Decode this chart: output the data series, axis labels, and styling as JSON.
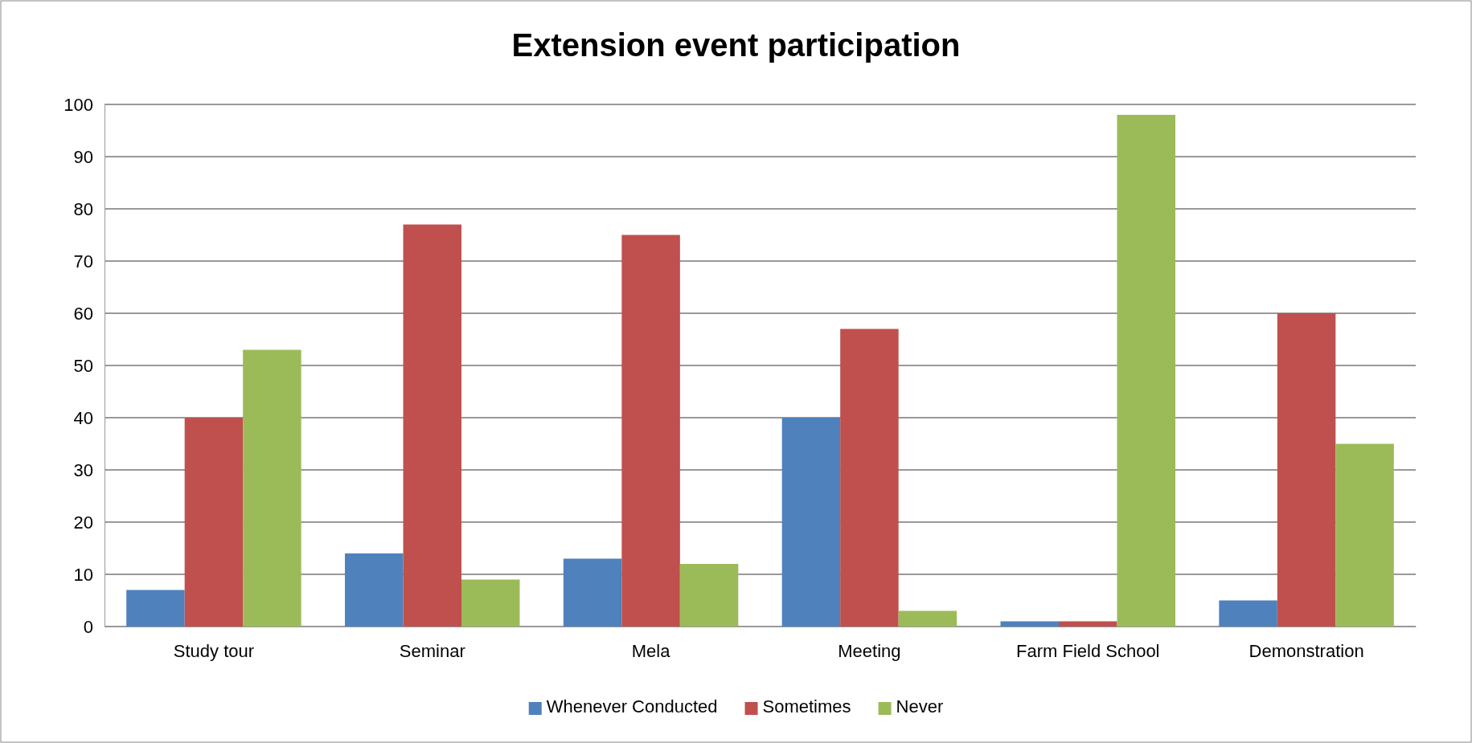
{
  "chart_data": {
    "type": "bar",
    "title": "Extension event participation",
    "categories": [
      "Study tour",
      "Seminar",
      "Mela",
      "Meeting",
      "Farm Field School",
      "Demonstration"
    ],
    "series": [
      {
        "name": "Whenever Conducted",
        "color": "#4f81bd",
        "values": [
          7,
          14,
          13,
          40,
          1,
          5
        ]
      },
      {
        "name": "Sometimes",
        "color": "#c0504d",
        "values": [
          40,
          77,
          75,
          57,
          1,
          60
        ]
      },
      {
        "name": "Never",
        "color": "#9bbb59",
        "values": [
          53,
          9,
          12,
          3,
          98,
          35
        ]
      }
    ],
    "ylim": [
      0,
      100
    ],
    "yticks": [
      0,
      10,
      20,
      30,
      40,
      50,
      60,
      70,
      80,
      90,
      100
    ],
    "grid": "y",
    "legend": "bottom"
  }
}
